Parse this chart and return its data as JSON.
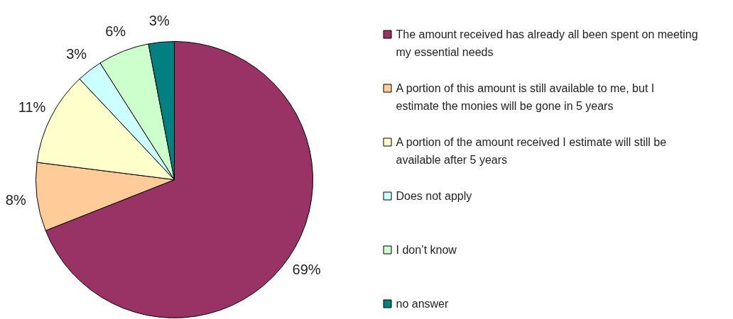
{
  "chart_data": {
    "type": "pie",
    "categories": [
      "The amount received has already all been spent on meeting my essential needs",
      "A portion of this amount is still available to me, but I estimate the monies will be gone in 5 years",
      "A portion of the amount received I estimate will still be available after 5 years",
      "Does not apply",
      "I don’t know",
      "no answer"
    ],
    "values": [
      69,
      8,
      11,
      3,
      6,
      3
    ],
    "colors": [
      "#993366",
      "#ffcc99",
      "#ffffcc",
      "#ccffff",
      "#ccffcc",
      "#008080"
    ],
    "value_labels": [
      "69%",
      "8%",
      "11%",
      "3%",
      "6%",
      "3%"
    ],
    "legend": "right"
  }
}
